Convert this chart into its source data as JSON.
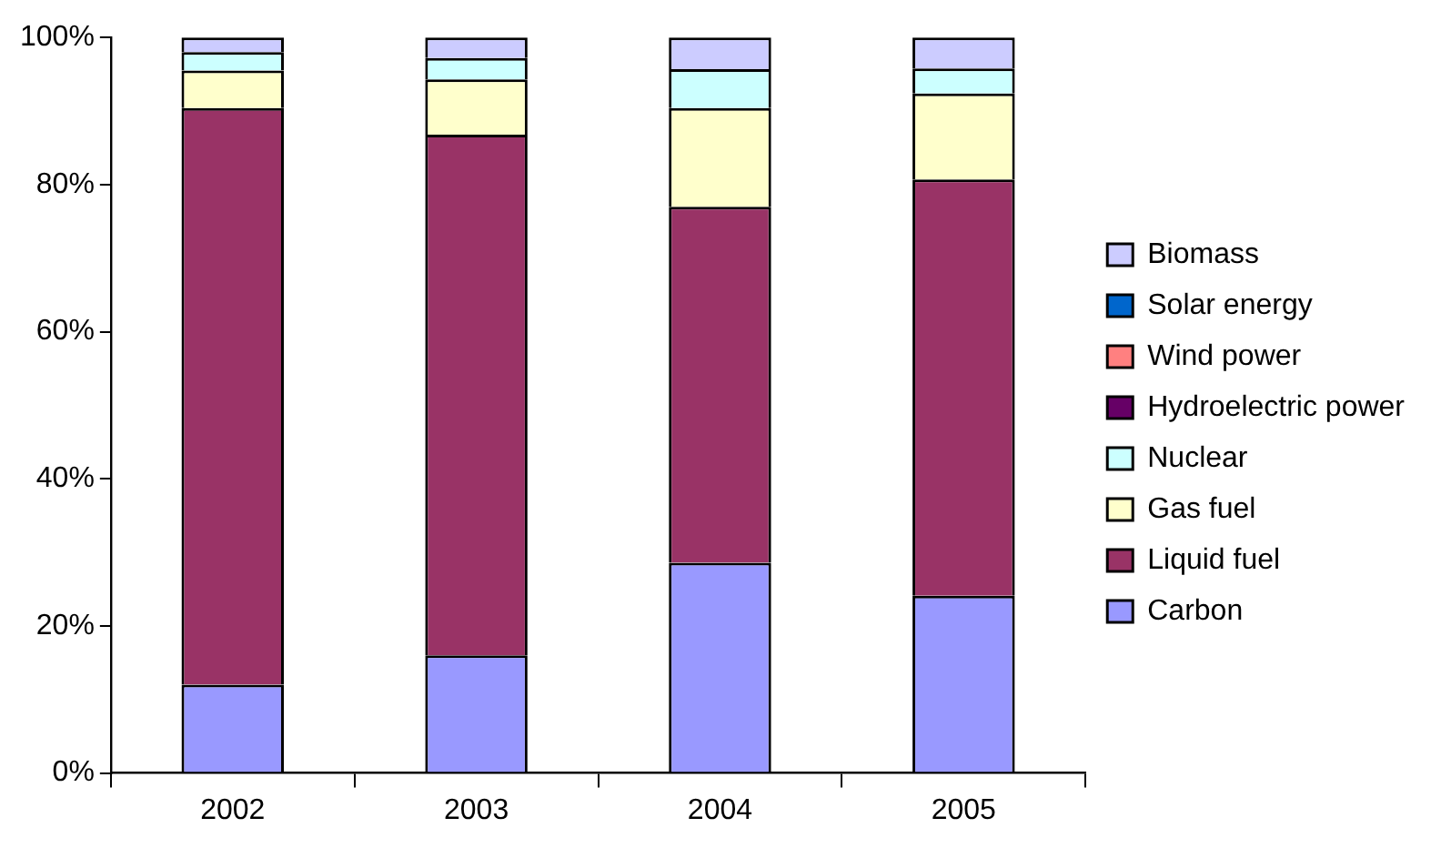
{
  "chart_data": {
    "type": "bar",
    "stacked": true,
    "categories": [
      "2002",
      "2003",
      "2004",
      "2005"
    ],
    "series": [
      {
        "name": "Carbon",
        "color": "#9999ff",
        "values": [
          12.0,
          16.0,
          28.6,
          24.1
        ]
      },
      {
        "name": "Liquid fuel",
        "color": "#993366",
        "values": [
          78.4,
          70.8,
          48.4,
          56.6
        ]
      },
      {
        "name": "Gas fuel",
        "color": "#ffffcc",
        "values": [
          5.1,
          7.5,
          13.4,
          11.7
        ]
      },
      {
        "name": "Nuclear",
        "color": "#ccffff",
        "values": [
          2.5,
          2.9,
          5.3,
          3.4
        ]
      },
      {
        "name": "Hydroelectric power",
        "color": "#660066",
        "values": [
          0,
          0,
          0,
          0
        ]
      },
      {
        "name": "Wind power",
        "color": "#ff8080",
        "values": [
          0,
          0,
          0,
          0
        ]
      },
      {
        "name": "Solar energy",
        "color": "#0066cc",
        "values": [
          0,
          0,
          0,
          0
        ]
      },
      {
        "name": "Biomass",
        "color": "#ccccff",
        "values": [
          2.0,
          2.8,
          4.3,
          4.2
        ]
      }
    ],
    "ylim": [
      0,
      100
    ],
    "yticks": [
      {
        "value": 0,
        "label": "0%"
      },
      {
        "value": 20,
        "label": "20%"
      },
      {
        "value": 40,
        "label": "40%"
      },
      {
        "value": 60,
        "label": "60%"
      },
      {
        "value": 80,
        "label": "80%"
      },
      {
        "value": 100,
        "label": "100%"
      }
    ],
    "grid": false,
    "legend": "right"
  }
}
